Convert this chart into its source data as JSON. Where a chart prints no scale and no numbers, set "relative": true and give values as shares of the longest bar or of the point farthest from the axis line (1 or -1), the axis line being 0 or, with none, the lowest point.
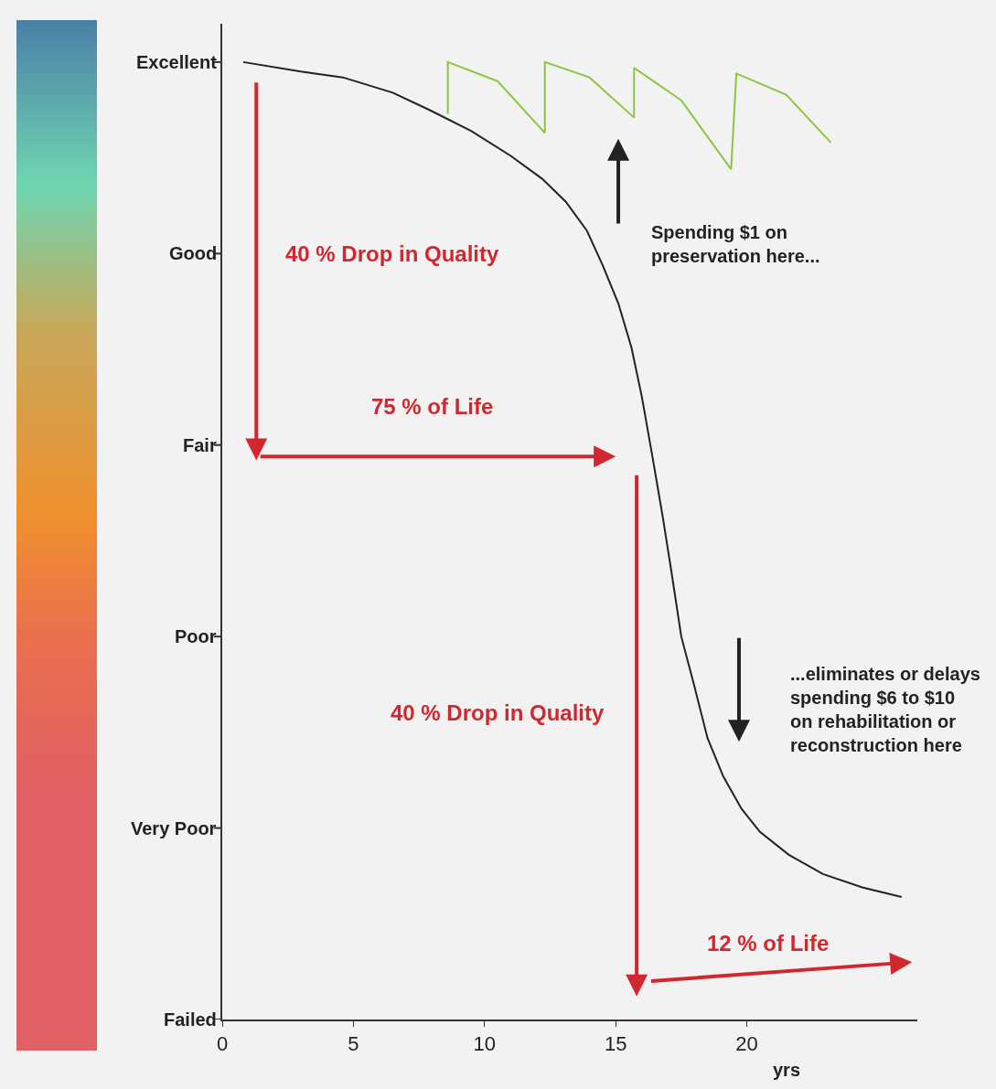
{
  "chart_data": {
    "type": "line",
    "xlabel": "yrs",
    "relative": true,
    "xlim": [
      0,
      26.5
    ],
    "xticks": [
      0,
      5,
      10,
      15,
      20
    ],
    "series": [
      {
        "color": "#222222",
        "x": [
          0.8,
          3,
          4.6,
          6.5,
          7.9,
          9.5,
          11,
          12.2,
          13.1,
          13.9,
          14.5,
          15.1,
          15.6,
          16.0,
          16.4,
          16.8,
          17.1,
          17.5,
          18.0,
          18.5,
          19.1,
          19.8,
          20.5,
          21.6,
          22.9,
          24.4,
          25.9
        ],
        "values": [
          1,
          0.99,
          0.984,
          0.968,
          0.95,
          0.928,
          0.902,
          0.878,
          0.854,
          0.824,
          0.788,
          0.748,
          0.702,
          0.65,
          0.588,
          0.524,
          0.472,
          0.4,
          0.348,
          0.294,
          0.254,
          0.22,
          0.196,
          0.172,
          0.152,
          0.138,
          0.128
        ]
      },
      {
        "color": "#8cc63f",
        "x": [
          8.6,
          8.6,
          10.5,
          12.3,
          12.3,
          14.0,
          15.7,
          15.7,
          17.5,
          19.4,
          19.6,
          21.5,
          23.2
        ],
        "values": [
          0.946,
          1,
          0.98,
          0.926,
          1,
          0.984,
          0.942,
          0.994,
          0.96,
          0.888,
          0.988,
          0.966,
          0.916
        ]
      }
    ],
    "annotations": [
      "Excellent",
      "Good",
      "Fair",
      "Poor",
      "Very Poor",
      "Failed",
      "40 % Drop in Quality",
      "75 % of Life",
      "40 % Drop in Quality",
      "12 % of Life",
      "Spending $1 on\npreservation here...",
      "...eliminates or delays\nspending $6 to $10\non rehabilitation or\nreconstruction here"
    ],
    "marker": "none",
    "line_style": "solid"
  }
}
